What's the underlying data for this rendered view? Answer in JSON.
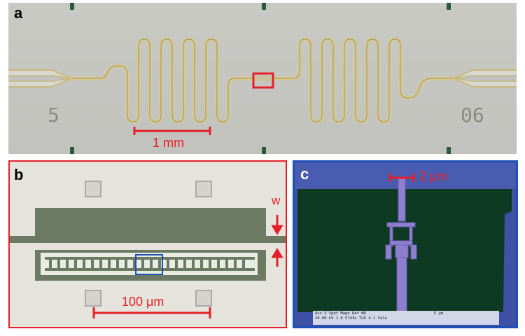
{
  "panels": {
    "a": {
      "label": "a",
      "left_marking": "5",
      "right_marking": "06",
      "scale_bar": "1 mm"
    },
    "b": {
      "label": "b",
      "width_marker": "w",
      "scale_bar": "100 μm"
    },
    "c": {
      "label": "c",
      "scale_bar": "2 μm",
      "sem_info": {
        "header": "Acc.V   Spot  Magn   Det   WD",
        "values": "10.00 kV  1.0    5743x  TLD  4.1    Yale",
        "scale": "5 μm"
      }
    }
  },
  "colors": {
    "highlight_red": "#e5202a",
    "highlight_blue": "#1e4fb6",
    "gold_trace": "#d8c98a",
    "sem_green": "#0e3a24",
    "sem_purple": "#8e7fd0"
  }
}
